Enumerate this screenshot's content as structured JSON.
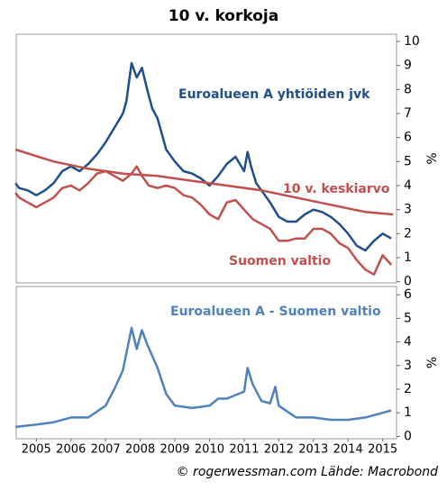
{
  "chart_data": [
    {
      "type": "line",
      "title": "10 v. korkoja",
      "ylabel": "%",
      "ylim": [
        -0.05,
        10.3
      ],
      "yticks": [
        0,
        1,
        2,
        3,
        4,
        5,
        6,
        7,
        8,
        9,
        10
      ],
      "xlim": [
        2004.92,
        2015.9
      ],
      "series": [
        {
          "name": "Euroalueen A yhtiöiden jvk",
          "color": "#1f4e8c",
          "x": [
            2004.9,
            2005.0,
            2005.25,
            2005.5,
            2005.75,
            2006.0,
            2006.25,
            2006.5,
            2006.75,
            2007.0,
            2007.25,
            2007.5,
            2007.75,
            2008.0,
            2008.1,
            2008.25,
            2008.4,
            2008.55,
            2008.7,
            2008.85,
            2009.0,
            2009.25,
            2009.5,
            2009.75,
            2010.0,
            2010.25,
            2010.5,
            2010.75,
            2011.0,
            2011.25,
            2011.5,
            2011.6,
            2011.7,
            2011.85,
            2012.0,
            2012.25,
            2012.5,
            2012.75,
            2013.0,
            2013.25,
            2013.5,
            2013.75,
            2014.0,
            2014.25,
            2014.5,
            2014.75,
            2015.0,
            2015.25,
            2015.5,
            2015.75
          ],
          "values": [
            4.1,
            3.9,
            3.8,
            3.6,
            3.8,
            4.1,
            4.6,
            4.8,
            4.6,
            4.9,
            5.3,
            5.8,
            6.4,
            7.0,
            7.5,
            9.1,
            8.5,
            8.9,
            8.0,
            7.2,
            6.8,
            5.5,
            5.0,
            4.6,
            4.5,
            4.3,
            4.0,
            4.4,
            4.9,
            5.2,
            4.6,
            5.4,
            4.8,
            4.1,
            3.8,
            3.3,
            2.7,
            2.5,
            2.5,
            2.8,
            3.0,
            2.9,
            2.7,
            2.4,
            2.0,
            1.5,
            1.3,
            1.7,
            2.0,
            1.8
          ]
        },
        {
          "name": "10 v. keskiarvo",
          "color": "#c0504d",
          "x": [
            2004.9,
            2006.0,
            2007.0,
            2008.0,
            2009.0,
            2010.0,
            2011.0,
            2012.0,
            2013.0,
            2014.0,
            2015.0,
            2015.8
          ],
          "values": [
            5.5,
            5.0,
            4.7,
            4.5,
            4.4,
            4.2,
            4.0,
            3.8,
            3.5,
            3.2,
            2.9,
            2.8
          ]
        },
        {
          "name": "Suomen valtio",
          "color": "#c0504d",
          "x": [
            2004.9,
            2005.0,
            2005.25,
            2005.5,
            2005.75,
            2006.0,
            2006.25,
            2006.5,
            2006.75,
            2007.0,
            2007.25,
            2007.5,
            2007.75,
            2008.0,
            2008.25,
            2008.4,
            2008.55,
            2008.75,
            2009.0,
            2009.25,
            2009.5,
            2009.75,
            2010.0,
            2010.25,
            2010.5,
            2010.75,
            2011.0,
            2011.25,
            2011.5,
            2011.75,
            2012.0,
            2012.25,
            2012.5,
            2012.75,
            2013.0,
            2013.25,
            2013.5,
            2013.75,
            2014.0,
            2014.25,
            2014.5,
            2014.75,
            2015.0,
            2015.25,
            2015.5,
            2015.75
          ],
          "values": [
            3.7,
            3.5,
            3.3,
            3.1,
            3.3,
            3.5,
            3.9,
            4.0,
            3.8,
            4.1,
            4.5,
            4.6,
            4.4,
            4.2,
            4.5,
            4.8,
            4.4,
            4.0,
            3.9,
            4.0,
            3.9,
            3.6,
            3.5,
            3.2,
            2.8,
            2.6,
            3.3,
            3.4,
            3.0,
            2.6,
            2.4,
            2.2,
            1.7,
            1.7,
            1.8,
            1.8,
            2.2,
            2.2,
            2.0,
            1.6,
            1.4,
            0.9,
            0.5,
            0.3,
            1.1,
            0.7
          ]
        }
      ]
    },
    {
      "type": "line",
      "ylabel": "%",
      "ylim": [
        -0.1,
        6.35
      ],
      "yticks": [
        0,
        1,
        2,
        3,
        4,
        5,
        6
      ],
      "xlim": [
        2004.92,
        2015.9
      ],
      "xticks": [
        {
          "value": 2005.5,
          "label": "2005"
        },
        {
          "value": 2006.5,
          "label": "2006"
        },
        {
          "value": 2007.5,
          "label": "2007"
        },
        {
          "value": 2008.5,
          "label": "2008"
        },
        {
          "value": 2009.5,
          "label": "2009"
        },
        {
          "value": 2010.5,
          "label": "2010"
        },
        {
          "value": 2011.5,
          "label": "2011"
        },
        {
          "value": 2012.5,
          "label": "2012"
        },
        {
          "value": 2013.5,
          "label": "2013"
        },
        {
          "value": 2014.5,
          "label": "2014"
        },
        {
          "value": 2015.5,
          "label": "2015"
        }
      ],
      "series": [
        {
          "name": "Euroalueen A - Suomen valtio",
          "color": "#4f81bd",
          "x": [
            2004.9,
            2005.5,
            2006.0,
            2006.5,
            2007.0,
            2007.5,
            2007.75,
            2008.0,
            2008.25,
            2008.4,
            2008.55,
            2008.7,
            2009.0,
            2009.25,
            2009.5,
            2010.0,
            2010.5,
            2010.75,
            2011.0,
            2011.5,
            2011.6,
            2011.75,
            2012.0,
            2012.25,
            2012.4,
            2012.5,
            2013.0,
            2013.5,
            2014.0,
            2014.5,
            2015.0,
            2015.5,
            2015.75
          ],
          "values": [
            0.4,
            0.5,
            0.6,
            0.8,
            0.8,
            1.3,
            2.0,
            2.8,
            4.6,
            3.7,
            4.5,
            3.9,
            2.9,
            1.8,
            1.3,
            1.2,
            1.3,
            1.6,
            1.6,
            1.9,
            2.9,
            2.2,
            1.5,
            1.4,
            2.1,
            1.3,
            0.8,
            0.8,
            0.7,
            0.7,
            0.8,
            1.0,
            1.1
          ]
        }
      ]
    }
  ],
  "source": "© rogerwessman.com Lähde: Macrobond"
}
